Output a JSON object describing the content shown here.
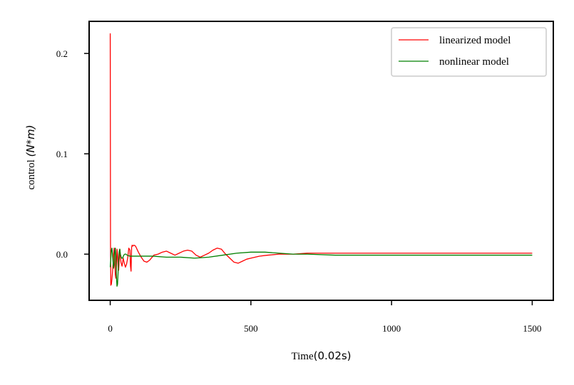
{
  "chart_data": {
    "type": "line",
    "title": "",
    "xlabel_text": "Time",
    "xlabel_math": "(0.02s)",
    "ylabel_text": "control ",
    "ylabel_math": "(N*m)",
    "xlim": [
      -75,
      1575
    ],
    "ylim": [
      -0.046,
      0.232
    ],
    "xticks": [
      0,
      500,
      1000,
      1500
    ],
    "xtick_labels": [
      "0",
      "500",
      "1000",
      "1500"
    ],
    "yticks": [
      0.0,
      0.1,
      0.2
    ],
    "ytick_labels": [
      "0.0",
      "0.1",
      "0.2"
    ],
    "grid": false,
    "legend_position": "top-right",
    "series": [
      {
        "name": "linearized model",
        "color": "#ff0000",
        "x": [
          0,
          1,
          2,
          4,
          6,
          8,
          10,
          12,
          14,
          16,
          18,
          20,
          22,
          24,
          26,
          28,
          30,
          34,
          38,
          42,
          46,
          50,
          54,
          58,
          62,
          66,
          70,
          72,
          74,
          76,
          78,
          80,
          84,
          90,
          100,
          110,
          120,
          130,
          140,
          155,
          170,
          185,
          200,
          215,
          230,
          245,
          260,
          275,
          290,
          305,
          320,
          335,
          350,
          365,
          380,
          395,
          410,
          425,
          440,
          455,
          470,
          485,
          500,
          530,
          560,
          600,
          650,
          700,
          800,
          900,
          1000,
          1100,
          1200,
          1300,
          1400,
          1500
        ],
        "y": [
          0.22,
          0.01,
          -0.031,
          -0.03,
          -0.025,
          -0.018,
          -0.01,
          0.0,
          0.006,
          -0.002,
          -0.02,
          -0.024,
          -0.014,
          0.005,
          0.0,
          -0.012,
          -0.016,
          0.005,
          -0.008,
          -0.012,
          -0.004,
          -0.009,
          -0.013,
          -0.01,
          -0.004,
          0.006,
          0.004,
          -0.012,
          -0.017,
          0.007,
          0.009,
          0.008,
          0.009,
          0.008,
          0.002,
          -0.003,
          -0.007,
          -0.008,
          -0.006,
          -0.001,
          0.0,
          0.002,
          0.003,
          0.001,
          -0.001,
          0.001,
          0.003,
          0.004,
          0.003,
          -0.001,
          -0.003,
          -0.001,
          0.001,
          0.004,
          0.006,
          0.005,
          0.0,
          -0.004,
          -0.008,
          -0.009,
          -0.007,
          -0.005,
          -0.004,
          -0.002,
          -0.001,
          0.0,
          0.0,
          0.001,
          0.001,
          0.001,
          0.001,
          0.001,
          0.001,
          0.001,
          0.001,
          0.001
        ]
      },
      {
        "name": "nonlinear model",
        "color": "#008000",
        "x": [
          0,
          2,
          4,
          6,
          8,
          10,
          12,
          14,
          16,
          18,
          20,
          22,
          24,
          26,
          28,
          30,
          32,
          34,
          36,
          40,
          44,
          48,
          52,
          56,
          60,
          70,
          80,
          100,
          150,
          200,
          250,
          300,
          350,
          400,
          450,
          500,
          550,
          600,
          650,
          700,
          800,
          900,
          1000,
          1100,
          1200,
          1300,
          1400,
          1500
        ],
        "y": [
          -0.013,
          -0.004,
          0.004,
          0.006,
          0.0,
          -0.008,
          -0.014,
          -0.01,
          0.002,
          0.006,
          -0.002,
          -0.022,
          -0.032,
          -0.03,
          -0.018,
          -0.006,
          0.003,
          0.005,
          0.0,
          -0.004,
          -0.004,
          -0.001,
          0.0,
          0.0,
          -0.001,
          -0.002,
          -0.002,
          -0.002,
          -0.002,
          -0.003,
          -0.003,
          -0.004,
          -0.003,
          -0.001,
          0.001,
          0.002,
          0.002,
          0.001,
          0.0,
          0.0,
          -0.001,
          -0.001,
          -0.001,
          -0.001,
          -0.001,
          -0.001,
          -0.001,
          -0.001
        ]
      }
    ]
  }
}
